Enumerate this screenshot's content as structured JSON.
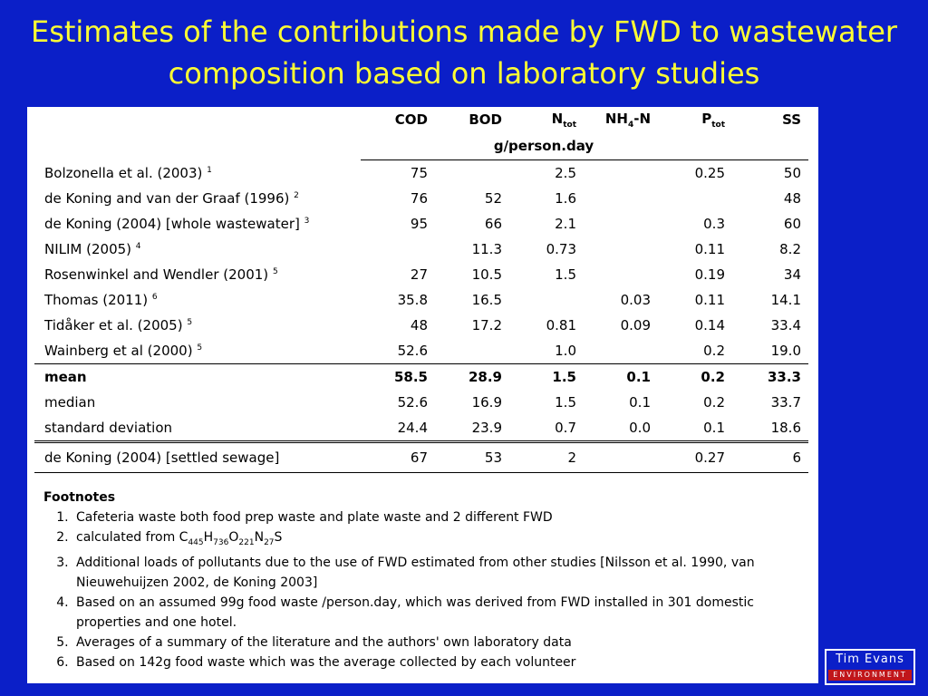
{
  "title": {
    "line1": "Estimates of the contributions made by FWD to wastewater",
    "line2": "composition based on laboratory studies"
  },
  "table": {
    "headers": {
      "cod": "COD",
      "bod": "BOD",
      "ntot_main": "N",
      "ntot_sub": "tot",
      "nh4_main": "NH",
      "nh4_sub": "4",
      "nh4_suffix": "-N",
      "ptot_main": "P",
      "ptot_sub": "tot",
      "ss": "SS",
      "unit": "g/person.day"
    },
    "rows": [
      {
        "source": "Bolzonella et al. (2003)",
        "ref": "1",
        "cod": "75",
        "bod": "",
        "ntot": "2.5",
        "nh4": "",
        "ptot": "0.25",
        "ss": "50"
      },
      {
        "source": "de Koning and van der Graaf (1996)",
        "ref": "2",
        "cod": "76",
        "bod": "52",
        "ntot": "1.6",
        "nh4": "",
        "ptot": "",
        "ss": "48"
      },
      {
        "source": "de Koning (2004) [whole wastewater]",
        "ref": "3",
        "cod": "95",
        "bod": "66",
        "ntot": "2.1",
        "nh4": "",
        "ptot": "0.3",
        "ss": "60"
      },
      {
        "source": "NILIM (2005)",
        "ref": "4",
        "cod": "",
        "bod": "11.3",
        "ntot": "0.73",
        "nh4": "",
        "ptot": "0.11",
        "ss": "8.2"
      },
      {
        "source": "Rosenwinkel and Wendler (2001)",
        "ref": "5",
        "cod": "27",
        "bod": "10.5",
        "ntot": "1.5",
        "nh4": "",
        "ptot": "0.19",
        "ss": "34"
      },
      {
        "source": "Thomas (2011)",
        "ref": "6",
        "cod": "35.8",
        "bod": "16.5",
        "ntot": "",
        "nh4": "0.03",
        "ptot": "0.11",
        "ss": "14.1"
      },
      {
        "source": "Tidåker et al. (2005)",
        "ref": "5",
        "cod": "48",
        "bod": "17.2",
        "ntot": "0.81",
        "nh4": "0.09",
        "ptot": "0.14",
        "ss": "33.4"
      },
      {
        "source": "Wainberg et al (2000)",
        "ref": "5",
        "cod": "52.6",
        "bod": "",
        "ntot": "1.0",
        "nh4": "",
        "ptot": "0.2",
        "ss": "19.0"
      }
    ],
    "summary": {
      "mean": {
        "label": "mean",
        "cod": "58.5",
        "bod": "28.9",
        "ntot": "1.5",
        "nh4": "0.1",
        "ptot": "0.2",
        "ss": "33.3"
      },
      "median": {
        "label": "median",
        "cod": "52.6",
        "bod": "16.9",
        "ntot": "1.5",
        "nh4": "0.1",
        "ptot": "0.2",
        "ss": "33.7"
      },
      "std": {
        "label": "standard deviation",
        "cod": "24.4",
        "bod": "23.9",
        "ntot": "0.7",
        "nh4": "0.0",
        "ptot": "0.1",
        "ss": "18.6"
      }
    },
    "settled": {
      "source": "de Koning (2004) [settled sewage]",
      "cod": "67",
      "bod": "53",
      "ntot": "2",
      "nh4": "",
      "ptot": "0.27",
      "ss": "6"
    }
  },
  "footnotes": {
    "title": "Footnotes",
    "n1": "Cafeteria waste both food prep waste and plate waste and 2 different FWD",
    "n2_prefix": "calculated from C",
    "n2_c": "445",
    "n2_h_letter": "H",
    "n2_h": "736",
    "n2_o_letter": "O",
    "n2_o": "221",
    "n2_n_letter": "N",
    "n2_n": "27",
    "n2_s_letter": "S",
    "n3": "Additional loads of pollutants due to the use of FWD estimated from other studies [Nilsson et al. 1990, van Nieuwehuijzen 2002, de Koning 2003]",
    "n4": "Based on an assumed 99g food waste /person.day, which was derived from FWD installed in 301 domestic properties and one hotel.",
    "n5": "Averages of a summary of the literature and the authors' own laboratory data",
    "n6": "Based on 142g food waste which was the average collected by each volunteer"
  },
  "logo": {
    "line1": "Tim Evans",
    "line2": "ENVIRONMENT",
    "colors": {
      "band": "#c0161b",
      "text": "#ffffff"
    }
  },
  "colors": {
    "background": "#0b1fc8",
    "title": "#ffff33",
    "panel": "#ffffff"
  }
}
